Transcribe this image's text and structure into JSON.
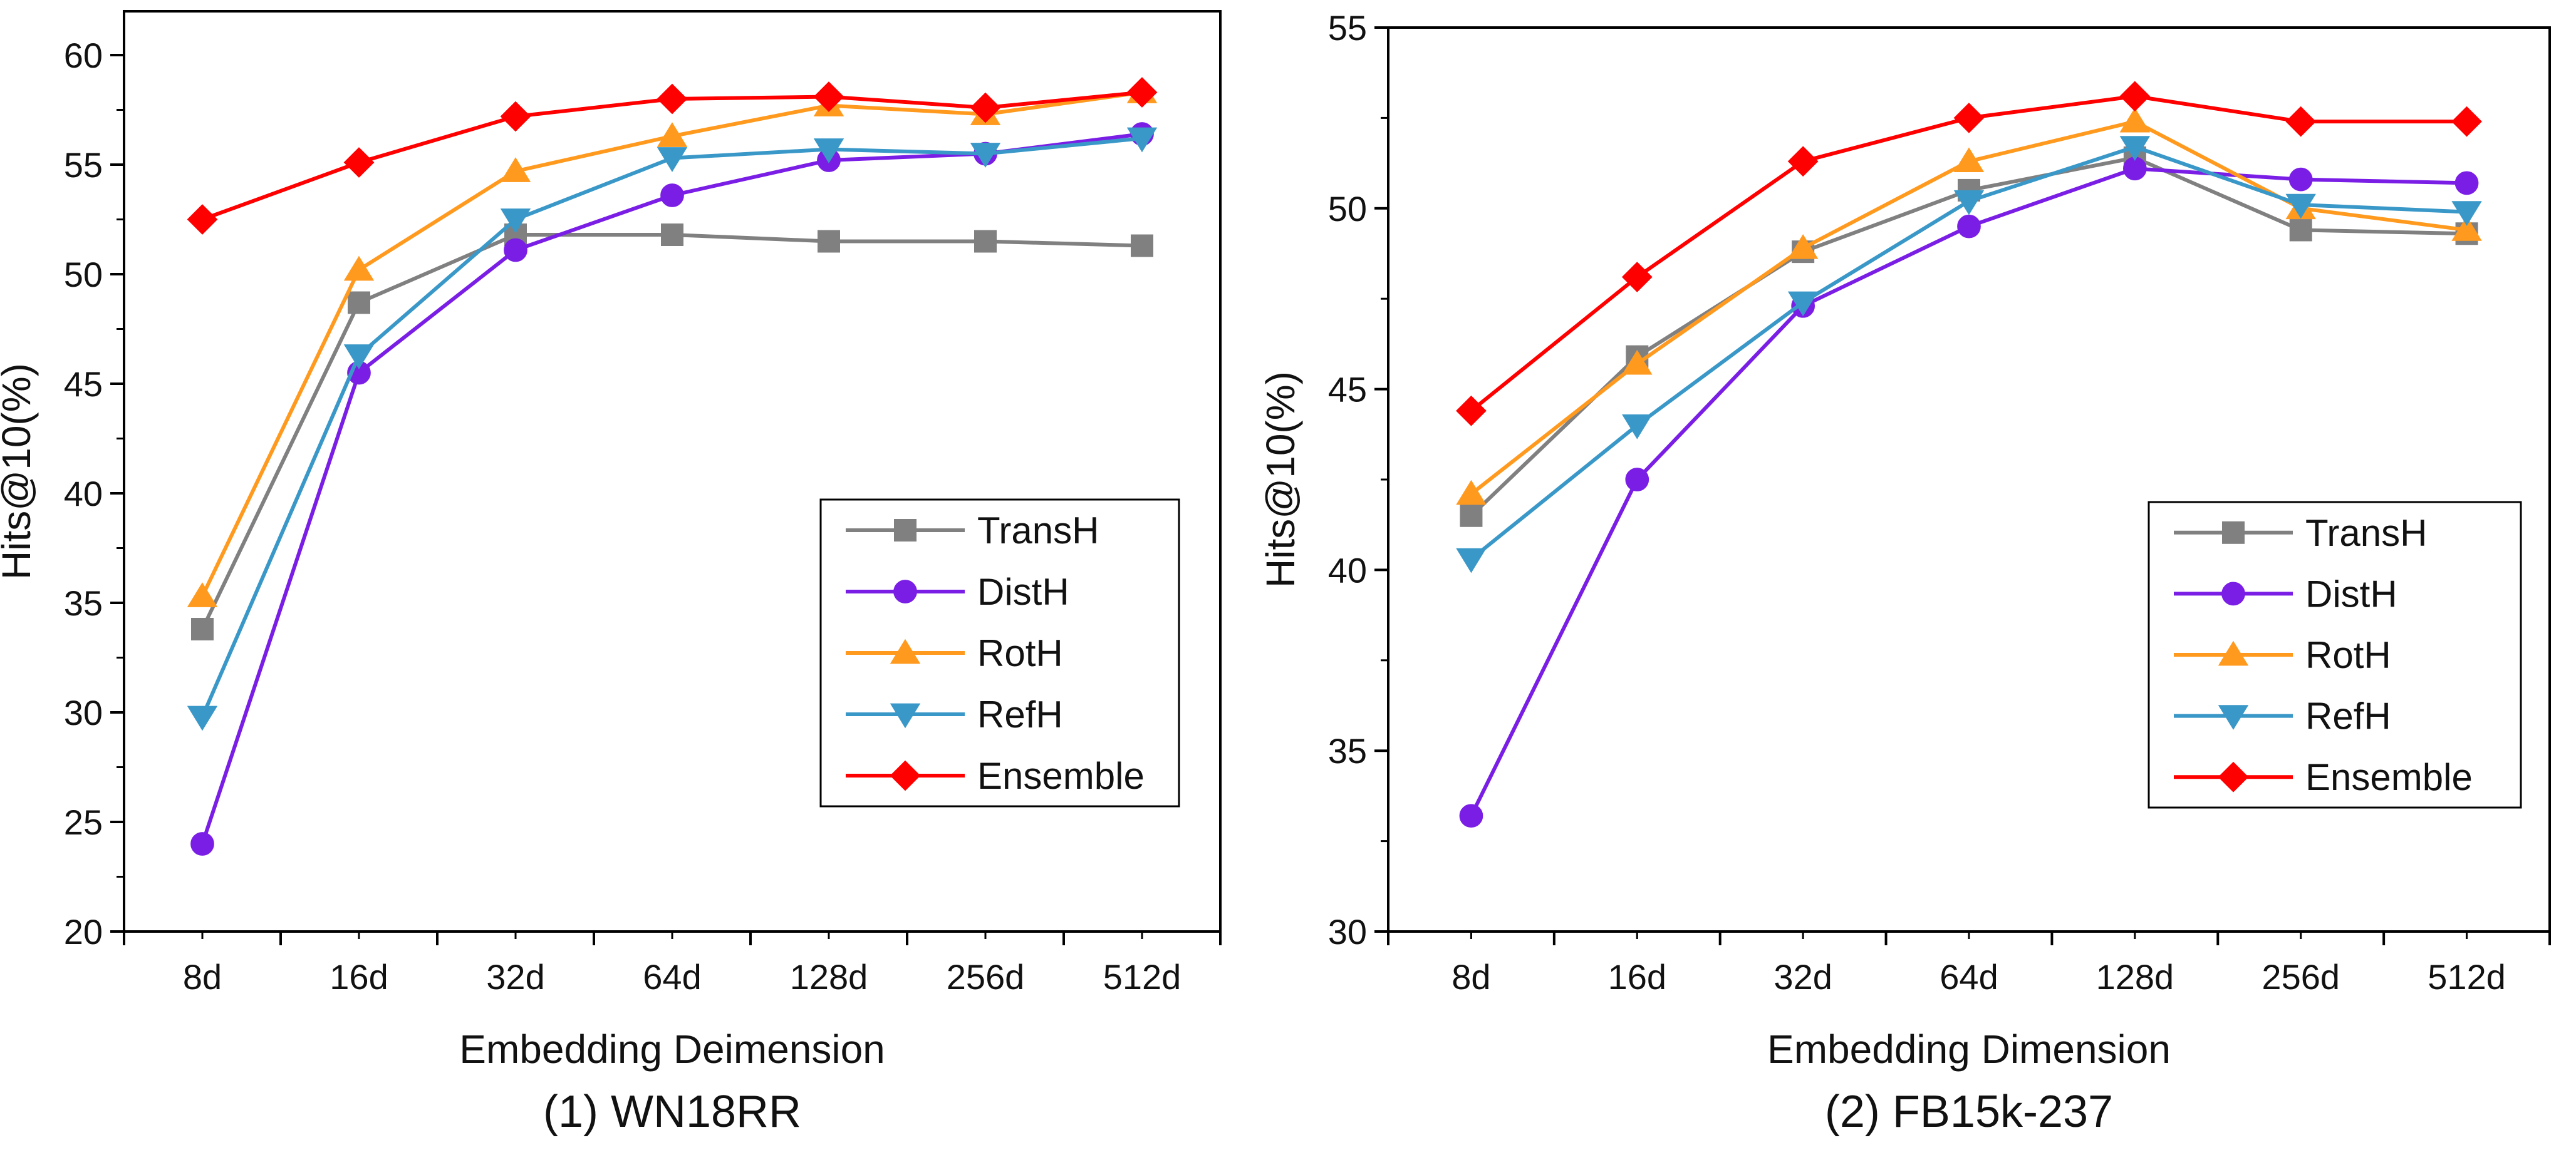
{
  "chart_data": [
    {
      "type": "line",
      "caption": "(1) WN18RR",
      "xlabel": "Embedding Deimension",
      "ylabel": "Hits@10(%)",
      "categories": [
        "8d",
        "16d",
        "32d",
        "64d",
        "128d",
        "256d",
        "512d"
      ],
      "ylim": [
        20,
        62
      ],
      "yticks": [
        20,
        25,
        30,
        35,
        40,
        45,
        50,
        55,
        60
      ],
      "legend_position": "lower-right",
      "grid": false,
      "series": [
        {
          "name": "TransH",
          "color": "#808080",
          "marker": "square",
          "values": [
            33.8,
            48.7,
            51.8,
            51.8,
            51.5,
            51.5,
            51.3
          ]
        },
        {
          "name": "DistH",
          "color": "#7a1ee6",
          "marker": "circle",
          "values": [
            24.0,
            45.5,
            51.1,
            53.6,
            55.2,
            55.5,
            56.4
          ]
        },
        {
          "name": "RotH",
          "color": "#ff9a1f",
          "marker": "triangle-up",
          "values": [
            35.3,
            50.2,
            54.7,
            56.3,
            57.7,
            57.3,
            58.3
          ]
        },
        {
          "name": "RefH",
          "color": "#3a98c8",
          "marker": "triangle-down",
          "values": [
            29.8,
            46.3,
            52.5,
            55.3,
            55.7,
            55.5,
            56.2
          ]
        },
        {
          "name": "Ensemble",
          "color": "#ff0000",
          "marker": "diamond",
          "values": [
            52.5,
            55.1,
            57.2,
            58.0,
            58.1,
            57.6,
            58.3
          ]
        }
      ]
    },
    {
      "type": "line",
      "caption": "(2) FB15k-237",
      "xlabel": "Embedding Dimension",
      "ylabel": "Hits@10(%)",
      "categories": [
        "8d",
        "16d",
        "32d",
        "64d",
        "128d",
        "256d",
        "512d"
      ],
      "ylim": [
        30,
        55
      ],
      "yticks": [
        30,
        35,
        40,
        45,
        50,
        55
      ],
      "legend_position": "lower-right",
      "grid": false,
      "series": [
        {
          "name": "TransH",
          "color": "#808080",
          "marker": "square",
          "values": [
            41.5,
            45.9,
            48.8,
            50.5,
            51.4,
            49.4,
            49.3
          ]
        },
        {
          "name": "DistH",
          "color": "#7a1ee6",
          "marker": "circle",
          "values": [
            33.2,
            42.5,
            47.3,
            49.5,
            51.1,
            50.8,
            50.7
          ]
        },
        {
          "name": "RotH",
          "color": "#ff9a1f",
          "marker": "triangle-up",
          "values": [
            42.1,
            45.7,
            48.9,
            51.3,
            52.4,
            50.0,
            49.4
          ]
        },
        {
          "name": "RefH",
          "color": "#3a98c8",
          "marker": "triangle-down",
          "values": [
            40.3,
            44.0,
            47.4,
            50.2,
            51.7,
            50.1,
            49.9
          ]
        },
        {
          "name": "Ensemble",
          "color": "#ff0000",
          "marker": "diamond",
          "values": [
            44.4,
            48.1,
            51.3,
            52.5,
            53.1,
            52.4,
            52.4
          ]
        }
      ]
    }
  ]
}
